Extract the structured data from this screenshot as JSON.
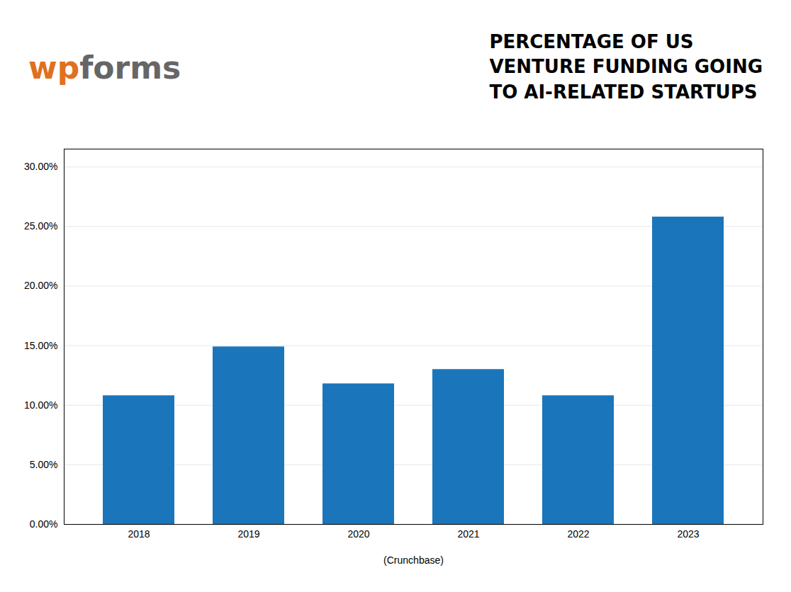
{
  "chart_data": {
    "type": "bar",
    "title": "PERCENTAGE OF US\nVENTURE FUNDING GOING\nTO AI-RELATED STARTUPS",
    "xlabel": "(Crunchbase)",
    "annotations": [
      {
        "text": "wp",
        "color": "#E07020"
      },
      {
        "text": "forms",
        "color": "#666666"
      }
    ],
    "categories": [
      "2018",
      "2019",
      "2020",
      "2021",
      "2022",
      "2023"
    ],
    "values": [
      10.8,
      14.9,
      11.8,
      13.0,
      10.8,
      25.8
    ],
    "color": "#1B75BB",
    "ylim": [
      0,
      31.5
    ],
    "yticks": [
      {
        "value": 0,
        "label": "0.00%"
      },
      {
        "value": 5,
        "label": "5.00%"
      },
      {
        "value": 10,
        "label": "10.00%"
      },
      {
        "value": 15,
        "label": "15.00%"
      },
      {
        "value": 20,
        "label": "20.00%"
      },
      {
        "value": 25,
        "label": "25.00%"
      },
      {
        "value": 30,
        "label": "30.00%"
      }
    ],
    "grid": true
  }
}
